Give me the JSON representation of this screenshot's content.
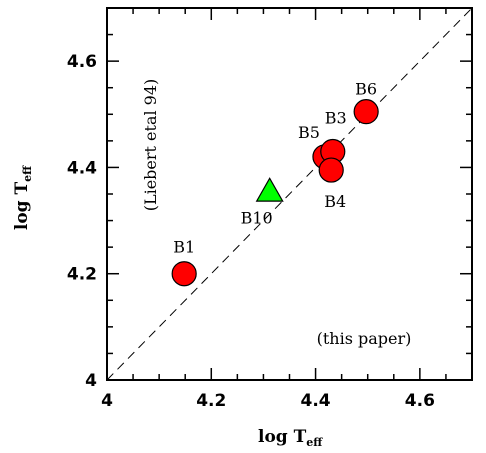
{
  "chart_data": {
    "type": "scatter",
    "xlabel": "log T",
    "xlabel_sub": "eff",
    "ylabel": "log T",
    "ylabel_sub": "eff",
    "xlim": [
      4.0,
      4.7
    ],
    "ylim": [
      4.0,
      4.7
    ],
    "xticks": [
      4.0,
      4.2,
      4.4,
      4.6
    ],
    "xtick_labels": [
      "4",
      "4.2",
      "4.4",
      "4.6"
    ],
    "yticks": [
      4.0,
      4.2,
      4.4,
      4.6
    ],
    "ytick_labels": [
      "4",
      "4.2",
      "4.4",
      "4.6"
    ],
    "reference_line": "y = x (dashed)",
    "annotations": {
      "y_axis_source": "(Liebert etal 94)",
      "x_axis_source": "(this paper)"
    },
    "points": [
      {
        "label": "B1",
        "x": 4.148,
        "y": 4.2,
        "marker": "circle",
        "color": "#ff0000"
      },
      {
        "label": "B10",
        "x": 4.312,
        "y": 4.355,
        "marker": "triangle",
        "color": "#00ff00"
      },
      {
        "label": "B5",
        "x": 4.418,
        "y": 4.42,
        "marker": "circle",
        "color": "#ff0000"
      },
      {
        "label": "B3",
        "x": 4.433,
        "y": 4.43,
        "marker": "circle",
        "color": "#ff0000"
      },
      {
        "label": "B4",
        "x": 4.43,
        "y": 4.395,
        "marker": "circle",
        "color": "#ff0000"
      },
      {
        "label": "B6",
        "x": 4.497,
        "y": 4.505,
        "marker": "circle",
        "color": "#ff0000"
      }
    ]
  }
}
